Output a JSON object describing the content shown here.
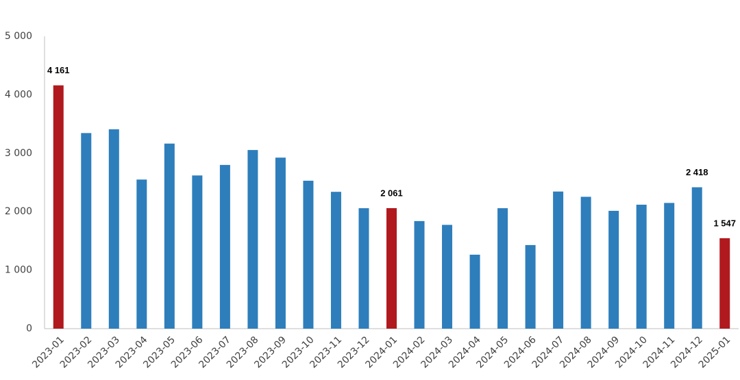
{
  "chart_data": {
    "type": "bar",
    "categories": [
      "2023-01",
      "2023-02",
      "2023-03",
      "2023-04",
      "2023-05",
      "2023-06",
      "2023-07",
      "2023-08",
      "2023-09",
      "2023-10",
      "2023-11",
      "2023-12",
      "2024-01",
      "2024-02",
      "2024-03",
      "2024-04",
      "2024-05",
      "2024-06",
      "2024-07",
      "2024-08",
      "2024-09",
      "2024-10",
      "2024-11",
      "2024-12",
      "2025-01"
    ],
    "values": [
      4161,
      3345,
      3410,
      2550,
      3165,
      2620,
      2800,
      3055,
      2925,
      2530,
      2340,
      2060,
      2061,
      1840,
      1775,
      1265,
      2060,
      1430,
      2345,
      2255,
      2015,
      2120,
      2150,
      2418,
      1547
    ],
    "value_labels": [
      "4 161",
      null,
      null,
      null,
      null,
      null,
      null,
      null,
      null,
      null,
      null,
      null,
      "2 061",
      null,
      null,
      null,
      null,
      null,
      null,
      null,
      null,
      null,
      null,
      "2 418",
      "1 547"
    ],
    "colors": [
      "#b0191e",
      "#2e7ebc",
      "#2e7ebc",
      "#2e7ebc",
      "#2e7ebc",
      "#2e7ebc",
      "#2e7ebc",
      "#2e7ebc",
      "#2e7ebc",
      "#2e7ebc",
      "#2e7ebc",
      "#2e7ebc",
      "#b0191e",
      "#2e7ebc",
      "#2e7ebc",
      "#2e7ebc",
      "#2e7ebc",
      "#2e7ebc",
      "#2e7ebc",
      "#2e7ebc",
      "#2e7ebc",
      "#2e7ebc",
      "#2e7ebc",
      "#2e7ebc",
      "#b0191e"
    ],
    "ylim": [
      0,
      5000
    ],
    "yticks": [
      0,
      {
        "value": 1000,
        "label": "1 000"
      },
      {
        "value": 2000,
        "label": "2 000"
      },
      {
        "value": 3000,
        "label": "3 000"
      },
      {
        "value": 4000,
        "label": "4 000"
      },
      {
        "value": 5000,
        "label": "5 000"
      }
    ],
    "grid": false
  }
}
